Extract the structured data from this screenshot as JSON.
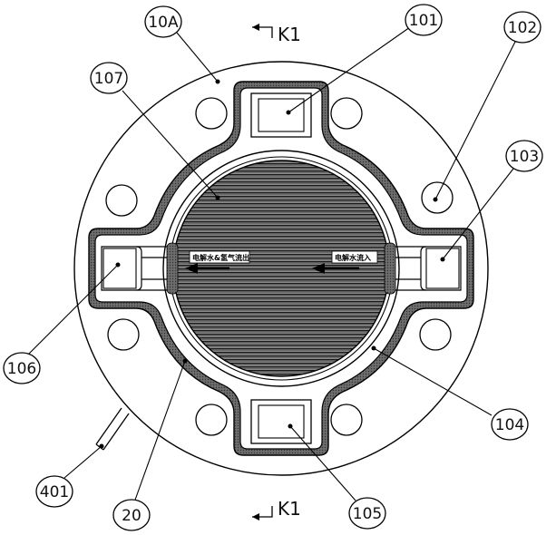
{
  "section_marks": {
    "top": "K1",
    "bottom": "K1"
  },
  "annotations": {
    "left": "电解水&氢气流出",
    "right": "电解水流入"
  },
  "callouts": [
    {
      "id": "c-10a",
      "text": "10A"
    },
    {
      "id": "c-101",
      "text": "101"
    },
    {
      "id": "c-102",
      "text": "102"
    },
    {
      "id": "c-103",
      "text": "103"
    },
    {
      "id": "c-107",
      "text": "107"
    },
    {
      "id": "c-106",
      "text": "106"
    },
    {
      "id": "c-104",
      "text": "104"
    },
    {
      "id": "c-401",
      "text": "401"
    },
    {
      "id": "c-20",
      "text": "20"
    },
    {
      "id": "c-105",
      "text": "105"
    }
  ]
}
